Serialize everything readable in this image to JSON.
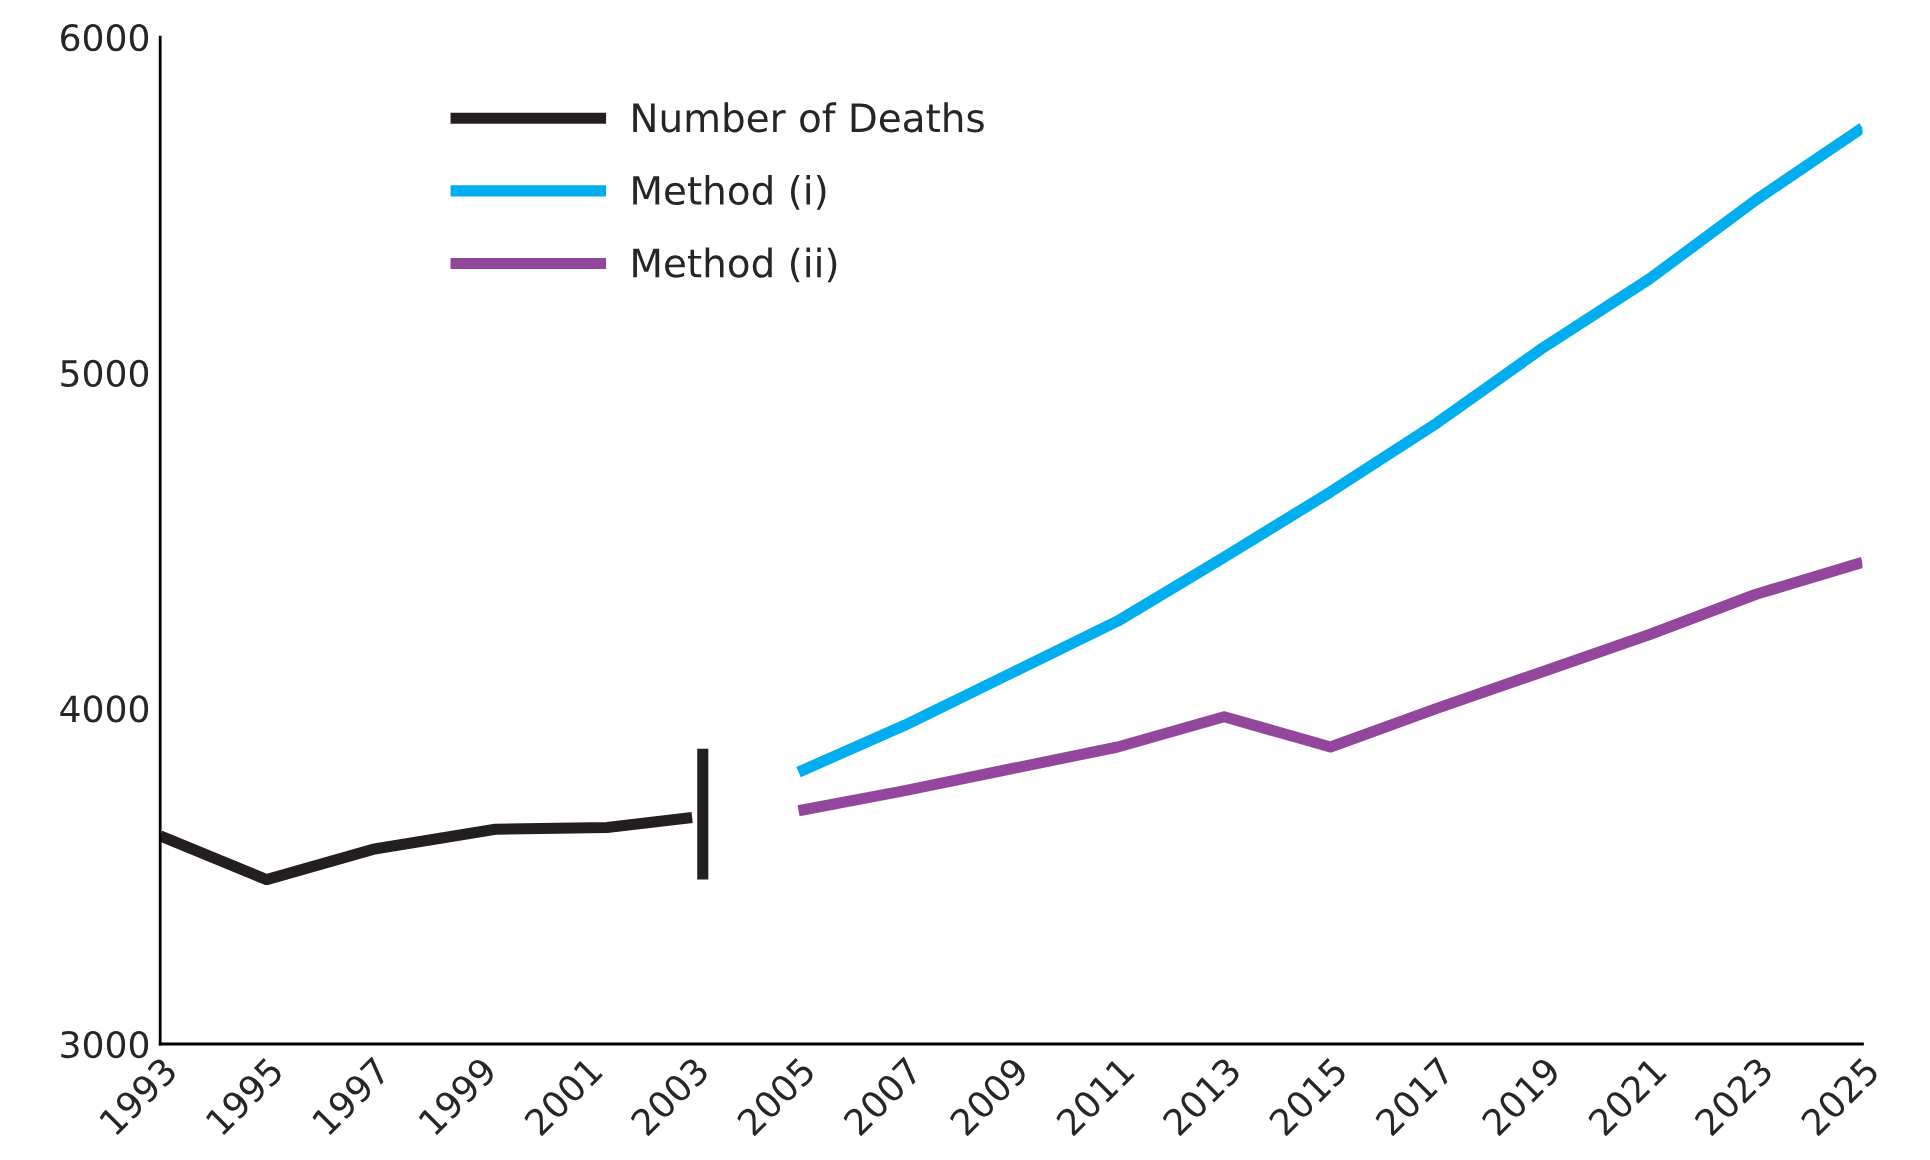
{
  "chart_data": {
    "type": "line",
    "series": [
      {
        "name": "Number of Deaths",
        "color": "#231f20",
        "x": [
          1993,
          1995,
          1997,
          1999.3,
          2001.4,
          2003
        ],
        "values": [
          3620,
          3490,
          3580,
          3640,
          3645,
          3675
        ]
      },
      {
        "color": "#231f20",
        "x": [
          2003.2,
          2003.2
        ],
        "values": [
          3490,
          3880
        ]
      },
      {
        "name": "Method (i)",
        "color": "#00aeef",
        "x": [
          2005,
          2007,
          2009,
          2011,
          2013,
          2015,
          2017,
          2019,
          2021,
          2023,
          2025
        ],
        "values": [
          3810,
          3950,
          4105,
          4260,
          4450,
          4645,
          4850,
          5075,
          5280,
          5515,
          5730
        ]
      },
      {
        "name": "Method (ii)",
        "color": "#92479c",
        "x": [
          2005,
          2007,
          2009,
          2011,
          2013,
          2015,
          2017,
          2019,
          2021,
          2023,
          2025
        ],
        "values": [
          3695,
          3755,
          3820,
          3885,
          3975,
          3885,
          4000,
          4110,
          4220,
          4340,
          4435
        ]
      }
    ],
    "xlim": [
      1993,
      2025
    ],
    "xticks": [
      1993,
      1995,
      1997,
      1999,
      2001,
      2003,
      2005,
      2007,
      2009,
      2011,
      2013,
      2015,
      2017,
      2019,
      2021,
      2023,
      2025
    ],
    "ylim": [
      3000,
      6000
    ],
    "yticks": [
      3000,
      4000,
      5000,
      6000
    ],
    "grid": false,
    "legend": "top left",
    "line_style": "solid",
    "marker": "none"
  }
}
